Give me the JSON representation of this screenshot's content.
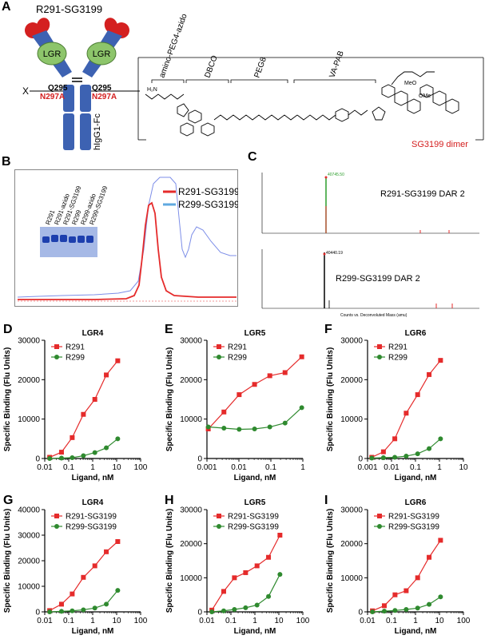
{
  "panel_letters": [
    "A",
    "B",
    "C",
    "D",
    "E",
    "F",
    "G",
    "H",
    "I"
  ],
  "panelA": {
    "construct_title": "R291-SG3199",
    "linker_segments": [
      "amino-PEG4-azido",
      "DBCO",
      "PEG8",
      "VA-PAB"
    ],
    "x_label": "X",
    "q_left": "Q295",
    "q_right": "Q295",
    "mut_left": "N297A",
    "mut_right": "N297A",
    "lgr_label": "LGR",
    "fc_label": "hIgG1-Fc",
    "payload_label": "SG3199 dimer",
    "ome_label": "OMe",
    "meo_label": "MeO",
    "h2n_label": "H₂N",
    "colors": {
      "fc": "#3d62b2",
      "lgr": "#8dc56b",
      "red_text": "#d42020"
    }
  },
  "panelB": {
    "legend": [
      "R291-SG3199",
      "R299-SG3199"
    ],
    "gel_lanes": [
      "R291",
      "R291-azido",
      "R291-SG3199",
      "R299",
      "R299-azido",
      "R299-SG3199"
    ],
    "colors": {
      "red": "#e52b2b",
      "blue": "#5fa8e0"
    }
  },
  "panelC": {
    "top_label": "R291-SG3199  DAR 2",
    "bottom_label": "R299-SG3199  DAR 2",
    "top_peak": "40745.50",
    "bottom_peak": "40440.19",
    "axis_caption": "Counts vs. Deconvoluted Mass (amu)"
  },
  "chart_data": [
    {
      "panel": "D",
      "type": "line",
      "title": "LGR4",
      "xlabel": "Ligand, nM",
      "ylabel": "Specific Binding (Flu Units)",
      "xscale": "log",
      "xlim": [
        0.01,
        100
      ],
      "ylim": [
        0,
        30000
      ],
      "xticks": [
        "0.01",
        "0.1",
        "1",
        "10",
        "100"
      ],
      "yticks": [
        "0",
        "10000",
        "20000",
        "30000"
      ],
      "legend_placement": "top-left",
      "series": [
        {
          "name": "R291",
          "color": "#e52b2b",
          "marker": "square",
          "x": [
            0.016,
            0.05,
            0.14,
            0.41,
            1.23,
            3.7,
            11.1
          ],
          "y": [
            300,
            1600,
            5300,
            11200,
            15000,
            21200,
            24800
          ]
        },
        {
          "name": "R299",
          "color": "#2f8a2f",
          "marker": "circle",
          "x": [
            0.016,
            0.05,
            0.14,
            0.41,
            1.23,
            3.7,
            11.1
          ],
          "y": [
            0,
            100,
            200,
            700,
            1500,
            2700,
            5000
          ]
        }
      ]
    },
    {
      "panel": "E",
      "type": "line",
      "title": "LGR5",
      "xlabel": "Ligand, nM",
      "ylabel": "Specific Binding (Flu Units)",
      "xscale": "log",
      "xlim": [
        0.001,
        1
      ],
      "ylim": [
        0,
        30000
      ],
      "xticks": [
        "0.001",
        "0.01",
        "0.1",
        "1"
      ],
      "yticks": [
        "0",
        "10000",
        "20000",
        "30000"
      ],
      "legend_placement": "top-left",
      "series": [
        {
          "name": "R291",
          "color": "#e52b2b",
          "marker": "square",
          "x": [
            0.0011,
            0.0034,
            0.0102,
            0.0309,
            0.0927,
            0.278,
            0.925
          ],
          "y": [
            7500,
            11800,
            16200,
            18800,
            21000,
            21800,
            25800
          ]
        },
        {
          "name": "R299",
          "color": "#2f8a2f",
          "marker": "circle",
          "x": [
            0.0011,
            0.0034,
            0.0102,
            0.0309,
            0.0927,
            0.278,
            0.925
          ],
          "y": [
            8000,
            7700,
            7400,
            7500,
            8000,
            9000,
            12900
          ]
        }
      ]
    },
    {
      "panel": "F",
      "type": "line",
      "title": "LGR6",
      "xlabel": "Ligand, nM",
      "ylabel": "Specific Binding (Flu Units)",
      "xscale": "log",
      "xlim": [
        0.001,
        10
      ],
      "ylim": [
        0,
        30000
      ],
      "xticks": [
        "0.001",
        "0.01",
        "0.1",
        "1",
        "10"
      ],
      "yticks": [
        "0",
        "10000",
        "20000",
        "30000"
      ],
      "legend_placement": "top-left",
      "series": [
        {
          "name": "R291",
          "color": "#e52b2b",
          "marker": "square",
          "x": [
            0.0015,
            0.0046,
            0.0137,
            0.041,
            0.123,
            0.37,
            1.11
          ],
          "y": [
            300,
            1700,
            5000,
            11500,
            16200,
            21300,
            24900
          ]
        },
        {
          "name": "R299",
          "color": "#2f8a2f",
          "marker": "circle",
          "x": [
            0.0015,
            0.0046,
            0.0137,
            0.041,
            0.123,
            0.37,
            1.11
          ],
          "y": [
            100,
            200,
            300,
            600,
            1200,
            2500,
            5000
          ]
        }
      ]
    },
    {
      "panel": "G",
      "type": "line",
      "title": "LGR4",
      "xlabel": "Ligand, nM",
      "ylabel": "Specific Binding (Flu Units)",
      "xscale": "log",
      "xlim": [
        0.01,
        100
      ],
      "ylim": [
        0,
        40000
      ],
      "xticks": [
        "0.01",
        "0.1",
        "1",
        "10",
        "100"
      ],
      "yticks": [
        "0",
        "10000",
        "20000",
        "30000",
        "40000"
      ],
      "legend_placement": "top-left",
      "series": [
        {
          "name": "R291-SG3199",
          "color": "#e52b2b",
          "marker": "square",
          "x": [
            0.016,
            0.05,
            0.14,
            0.41,
            1.23,
            3.7,
            11.1
          ],
          "y": [
            500,
            3000,
            7000,
            13500,
            18000,
            23500,
            27500
          ]
        },
        {
          "name": "R299-SG3199",
          "color": "#2f8a2f",
          "marker": "circle",
          "x": [
            0.016,
            0.05,
            0.14,
            0.41,
            1.23,
            3.7,
            11.1
          ],
          "y": [
            0,
            200,
            400,
            800,
            1500,
            3000,
            8400
          ]
        }
      ]
    },
    {
      "panel": "H",
      "type": "line",
      "title": "LGR5",
      "xlabel": "Ligand, nM",
      "ylabel": "Specific Binding (Flu Units)",
      "xscale": "log",
      "xlim": [
        0.01,
        100
      ],
      "ylim": [
        0,
        30000
      ],
      "xticks": [
        "0.01",
        "0.1",
        "1",
        "10",
        "100"
      ],
      "yticks": [
        "0",
        "10000",
        "20000",
        "30000"
      ],
      "legend_placement": "top-left",
      "series": [
        {
          "name": "R291-SG3199",
          "color": "#e52b2b",
          "marker": "square",
          "x": [
            0.016,
            0.05,
            0.14,
            0.41,
            1.23,
            3.7,
            11.1
          ],
          "y": [
            500,
            6000,
            10000,
            11500,
            13500,
            16000,
            22500
          ]
        },
        {
          "name": "R299-SG3199",
          "color": "#2f8a2f",
          "marker": "circle",
          "x": [
            0.016,
            0.05,
            0.14,
            0.41,
            1.23,
            3.7,
            11.1
          ],
          "y": [
            0,
            300,
            700,
            1200,
            2000,
            4500,
            11000
          ]
        }
      ]
    },
    {
      "panel": "I",
      "type": "line",
      "title": "LGR6",
      "xlabel": "Ligand, nM",
      "ylabel": "Specific Binding (Flu Units)",
      "xscale": "log",
      "xlim": [
        0.01,
        100
      ],
      "ylim": [
        0,
        30000
      ],
      "xticks": [
        "0.01",
        "0.1",
        "1",
        "10",
        "100"
      ],
      "yticks": [
        "0",
        "10000",
        "20000",
        "30000"
      ],
      "legend_placement": "top-left",
      "series": [
        {
          "name": "R291-SG3199",
          "color": "#e52b2b",
          "marker": "square",
          "x": [
            0.016,
            0.05,
            0.14,
            0.41,
            1.23,
            3.7,
            11.1
          ],
          "y": [
            300,
            1800,
            5000,
            6200,
            10000,
            16000,
            21000
          ]
        },
        {
          "name": "R299-SG3199",
          "color": "#2f8a2f",
          "marker": "circle",
          "x": [
            0.016,
            0.05,
            0.14,
            0.41,
            1.23,
            3.7,
            11.1
          ],
          "y": [
            0,
            200,
            400,
            700,
            1100,
            2200,
            4400
          ]
        }
      ]
    }
  ]
}
